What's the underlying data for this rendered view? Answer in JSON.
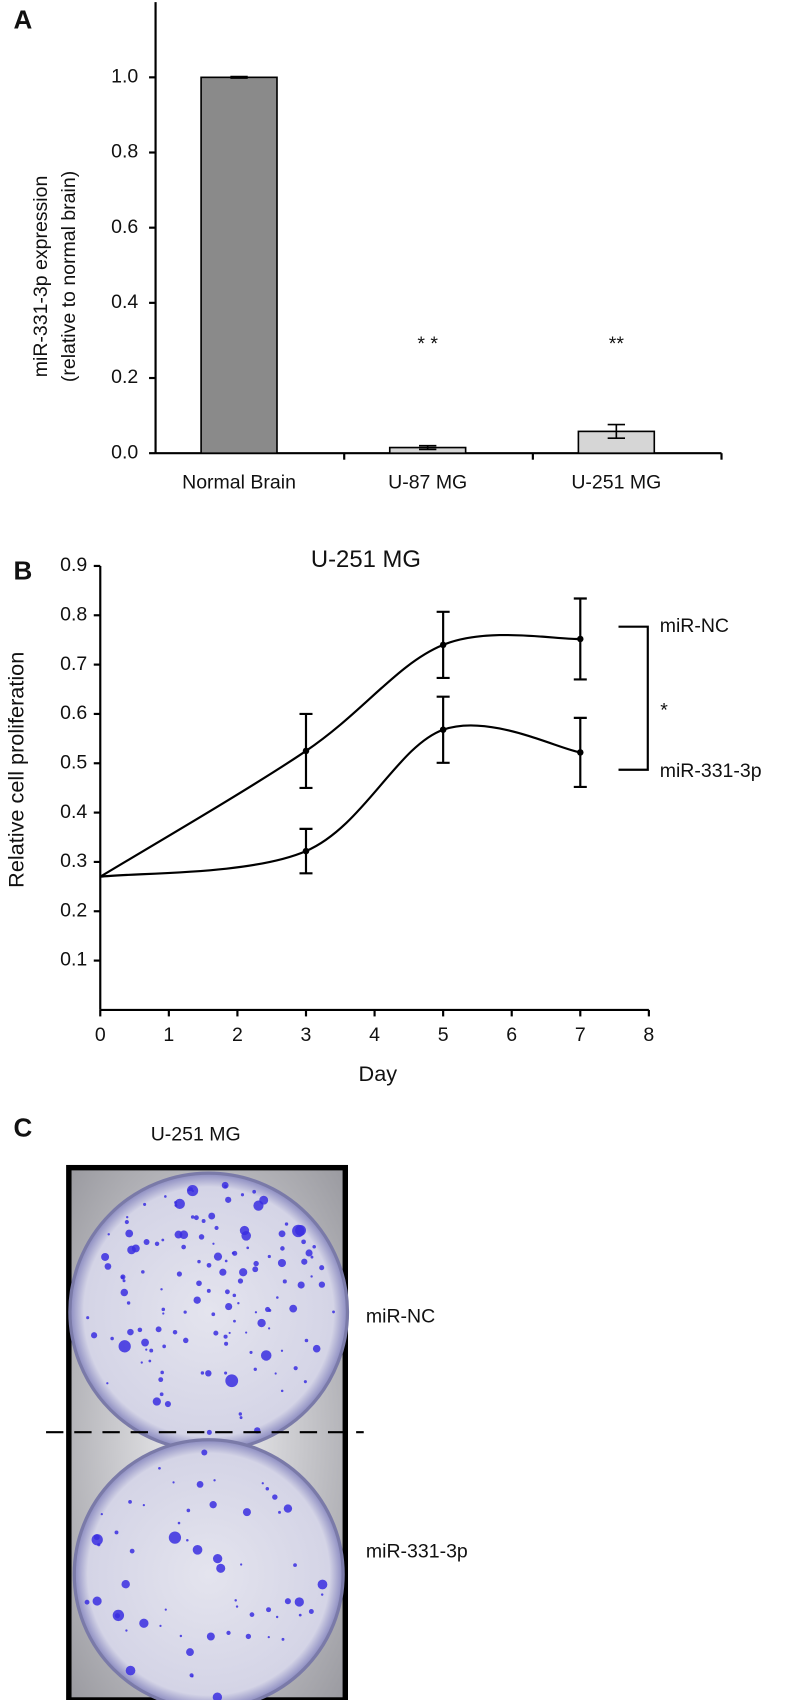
{
  "chart_data": [
    {
      "type": "bar",
      "panel_label": "A",
      "ylabel": [
        "miR-331-3p expression",
        "(relative to normal brain)"
      ],
      "categories": [
        "Normal Brain",
        "U-87 MG",
        "U-251 MG"
      ],
      "values": [
        1.0,
        0.015,
        0.058
      ],
      "error": [
        0.002,
        0.005,
        0.018
      ],
      "colors": [
        "#8a8a8a",
        "#d6d6d6",
        "#d6d6d6"
      ],
      "value_annotations": [
        null,
        "* *",
        "**"
      ],
      "ylim": [
        0,
        1.2
      ],
      "yticks": [
        {
          "value": 0,
          "label": "0.0"
        },
        0.2,
        0.4,
        0.6,
        0.8,
        {
          "value": 1,
          "label": "1.0"
        }
      ]
    },
    {
      "type": "line",
      "panel_label": "B",
      "title": "U-251 MG",
      "xlabel": "Day",
      "ylabel": "Relative cell proliferation",
      "x": [
        0,
        3,
        5,
        7
      ],
      "series": [
        {
          "name": "miR-NC",
          "color": "#000000",
          "values": [
            0.27,
            0.525,
            0.74,
            0.752
          ],
          "error": [
            null,
            0.075,
            0.067,
            0.082
          ]
        },
        {
          "name": "miR-331-3p",
          "color": "#000000",
          "values": [
            0.27,
            0.322,
            0.568,
            0.522
          ],
          "error": [
            null,
            0.045,
            0.067,
            0.07
          ]
        }
      ],
      "significance": "*",
      "xlim": [
        0,
        8
      ],
      "xticks": [
        0,
        1,
        2,
        3,
        4,
        5,
        6,
        7,
        8
      ],
      "ylim": [
        0,
        0.9
      ],
      "yticks": [
        0.1,
        0.2,
        0.3,
        0.4,
        0.5,
        0.6,
        0.7,
        0.8,
        0.9
      ]
    }
  ],
  "panel_c": {
    "panel_label": "C",
    "title": "U-251 MG",
    "top_label": "miR-NC",
    "bottom_label": "miR-331-3p"
  }
}
